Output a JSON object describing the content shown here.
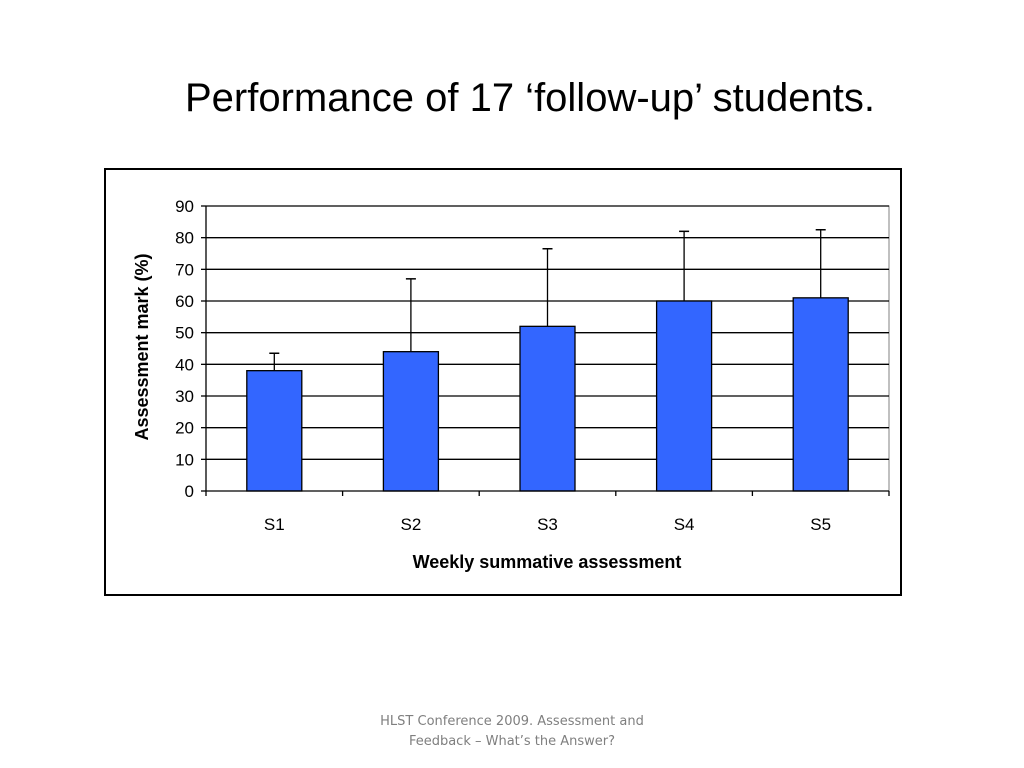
{
  "slide": {
    "title": "Performance of 17 ‘follow-up’ students.",
    "footer_line1": "HLST Conference 2009. Assessment and",
    "footer_line2": "Feedback – What’s the Answer?"
  },
  "chart_data": {
    "type": "bar",
    "title": "",
    "categories": [
      "S1",
      "S2",
      "S3",
      "S4",
      "S5"
    ],
    "series": [
      {
        "values": [
          38,
          44,
          52,
          60,
          61
        ],
        "error_upper": [
          43.5,
          67,
          76.5,
          82,
          82.5
        ]
      }
    ],
    "xlabel": "Weekly summative assessment",
    "ylabel": "Assessment mark (%)",
    "ylim": [
      0,
      90
    ],
    "yticks": [
      0,
      10,
      20,
      30,
      40,
      50,
      60,
      70,
      80,
      90
    ],
    "grid": true,
    "legend": "none",
    "bar_color": "#3366FF"
  }
}
